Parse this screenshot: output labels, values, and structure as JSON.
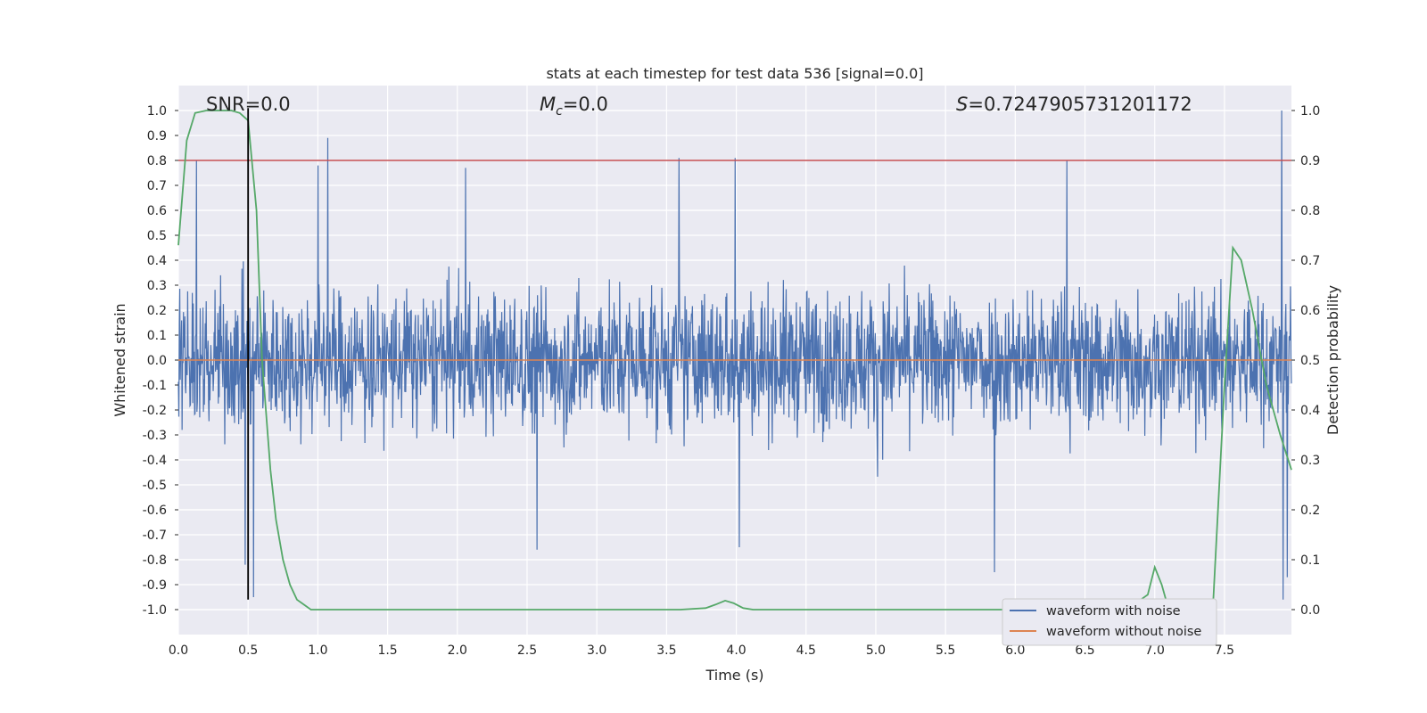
{
  "chart_data": {
    "type": "line",
    "title": "stats at each timestep for test data 536 [signal=0.0]",
    "xlabel": "Time (s)",
    "ylabel": "Whitened strain",
    "y2label": "Detection probability",
    "xlim": [
      0.0,
      7.98
    ],
    "ylim": [
      -1.1,
      1.1
    ],
    "y2lim": [
      -0.05,
      1.05
    ],
    "xticks": [
      "0.0",
      "0.5",
      "1.0",
      "1.5",
      "2.0",
      "2.5",
      "3.0",
      "3.5",
      "4.0",
      "4.5",
      "5.0",
      "5.5",
      "6.0",
      "6.5",
      "7.0",
      "7.5"
    ],
    "yticks": [
      "1.0",
      "0.9",
      "0.8",
      "0.7",
      "0.6",
      "0.5",
      "0.4",
      "0.3",
      "0.2",
      "0.1",
      "0.0",
      "-0.1",
      "-0.2",
      "-0.3",
      "-0.4",
      "-0.5",
      "-0.6",
      "-0.7",
      "-0.8",
      "-0.9",
      "-1.0"
    ],
    "y2ticks": [
      "1.0",
      "0.9",
      "0.8",
      "0.7",
      "0.6",
      "0.5",
      "0.4",
      "0.3",
      "0.2",
      "0.1",
      "0.0"
    ],
    "grid": true,
    "legend_position": "lower-right",
    "annotations": {
      "snr": "SNR=0.0",
      "mc_symbol": "M",
      "mc_subscript": "c",
      "mc_value": "=0.0",
      "s_symbol": "S",
      "s_value": "=0.7247905731201172"
    },
    "colors": {
      "background": "#eaeaf2",
      "grid": "#ffffff",
      "noisy": "#4c72b0",
      "clean": "#dd8452",
      "probability": "#55a868",
      "threshold": "#c44e52",
      "marker": "#000000"
    },
    "series": [
      {
        "name": "waveform with noise",
        "axis": "left",
        "kind": "noise",
        "typical_envelope": [
          -0.4,
          0.4
        ],
        "notable_peaks": [
          {
            "x": 0.13,
            "y": 0.8
          },
          {
            "x": 0.48,
            "y": -0.82
          },
          {
            "x": 0.54,
            "y": -0.95
          },
          {
            "x": 1.07,
            "y": 0.89
          },
          {
            "x": 1.0,
            "y": 0.78
          },
          {
            "x": 2.06,
            "y": 0.77
          },
          {
            "x": 2.57,
            "y": -0.76
          },
          {
            "x": 3.59,
            "y": 0.81
          },
          {
            "x": 3.99,
            "y": 0.81
          },
          {
            "x": 4.02,
            "y": -0.75
          },
          {
            "x": 5.85,
            "y": -0.85
          },
          {
            "x": 6.37,
            "y": 0.8
          },
          {
            "x": 7.91,
            "y": 1.0
          },
          {
            "x": 7.92,
            "y": -0.96
          },
          {
            "x": 7.95,
            "y": -0.87
          }
        ]
      },
      {
        "name": "waveform without noise",
        "axis": "left",
        "x": [
          0.0,
          7.98
        ],
        "y": [
          0.0,
          0.0
        ]
      },
      {
        "name": "detection probability",
        "axis": "right",
        "x": [
          0.0,
          0.06,
          0.12,
          0.2,
          0.3,
          0.38,
          0.44,
          0.5,
          0.56,
          0.6,
          0.66,
          0.7,
          0.75,
          0.8,
          0.85,
          0.9,
          0.95,
          1.0,
          3.6,
          3.78,
          3.85,
          3.92,
          3.98,
          4.05,
          4.12,
          4.2,
          6.8,
          6.95,
          7.0,
          7.05,
          7.1,
          7.2,
          7.35,
          7.42,
          7.5,
          7.56,
          7.62,
          7.7,
          7.8,
          7.9,
          7.98
        ],
        "y": [
          0.73,
          0.94,
          0.995,
          1.0,
          1.0,
          1.0,
          0.995,
          0.98,
          0.8,
          0.5,
          0.28,
          0.18,
          0.1,
          0.05,
          0.02,
          0.01,
          0.0,
          0.0,
          0.0,
          0.003,
          0.01,
          0.018,
          0.013,
          0.003,
          0.0,
          0.0,
          0.0,
          0.03,
          0.085,
          0.05,
          0.0,
          0.0,
          0.005,
          0.02,
          0.45,
          0.725,
          0.7,
          0.6,
          0.45,
          0.35,
          0.28
        ]
      },
      {
        "name": "threshold",
        "axis": "right",
        "x": [
          0.0,
          7.98
        ],
        "y": [
          0.9,
          0.9
        ]
      },
      {
        "name": "time marker",
        "axis": "left",
        "x": [
          0.5,
          0.5
        ],
        "y": [
          -0.96,
          1.01
        ]
      }
    ]
  }
}
